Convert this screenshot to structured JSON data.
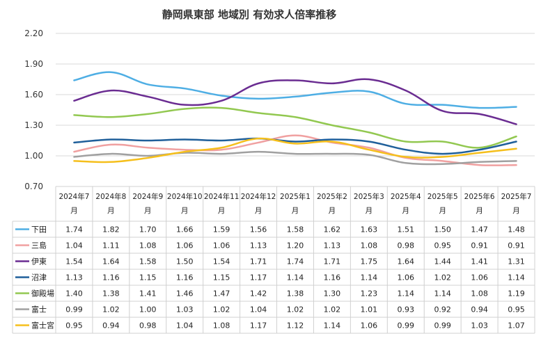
{
  "chart_data": {
    "type": "line",
    "title": "静岡県東部 地域別 有効求人倍率推移",
    "categories": [
      "2024年7月",
      "2024年8月",
      "2024年9月",
      "2024年10月",
      "2024年11月",
      "2024年12月",
      "2025年1月",
      "2025年2月",
      "2025年3月",
      "2025年4月",
      "2025年5月",
      "2025年6月",
      "2025年7月"
    ],
    "yticks": [
      "2.20",
      "1.90",
      "1.60",
      "1.30",
      "1.00",
      "0.70"
    ],
    "ylim": [
      0.7,
      2.2
    ],
    "grid": true,
    "legend": "table",
    "series": [
      {
        "name": "下田",
        "color": "#4eaee4",
        "values": [
          1.74,
          1.82,
          1.7,
          1.66,
          1.59,
          1.56,
          1.58,
          1.62,
          1.63,
          1.51,
          1.5,
          1.47,
          1.48
        ]
      },
      {
        "name": "三島",
        "color": "#f0a0a0",
        "values": [
          1.04,
          1.11,
          1.08,
          1.06,
          1.06,
          1.13,
          1.2,
          1.13,
          1.08,
          0.98,
          0.95,
          0.91,
          0.91
        ]
      },
      {
        "name": "伊東",
        "color": "#6a2c91",
        "values": [
          1.54,
          1.64,
          1.58,
          1.5,
          1.54,
          1.71,
          1.74,
          1.71,
          1.75,
          1.64,
          1.44,
          1.41,
          1.31
        ]
      },
      {
        "name": "沼津",
        "color": "#1f5f9a",
        "values": [
          1.13,
          1.16,
          1.15,
          1.16,
          1.15,
          1.17,
          1.14,
          1.16,
          1.14,
          1.06,
          1.02,
          1.06,
          1.14
        ]
      },
      {
        "name": "御殿場",
        "color": "#92c850",
        "values": [
          1.4,
          1.38,
          1.41,
          1.46,
          1.47,
          1.42,
          1.38,
          1.3,
          1.23,
          1.14,
          1.14,
          1.08,
          1.19
        ]
      },
      {
        "name": "富士",
        "color": "#a0a0a0",
        "values": [
          0.99,
          1.02,
          1.0,
          1.03,
          1.02,
          1.04,
          1.02,
          1.02,
          1.01,
          0.93,
          0.92,
          0.94,
          0.95
        ]
      },
      {
        "name": "富士宮",
        "color": "#f5bf1c",
        "values": [
          0.95,
          0.94,
          0.98,
          1.04,
          1.08,
          1.17,
          1.12,
          1.14,
          1.06,
          0.99,
          0.99,
          1.03,
          1.07
        ]
      }
    ]
  }
}
